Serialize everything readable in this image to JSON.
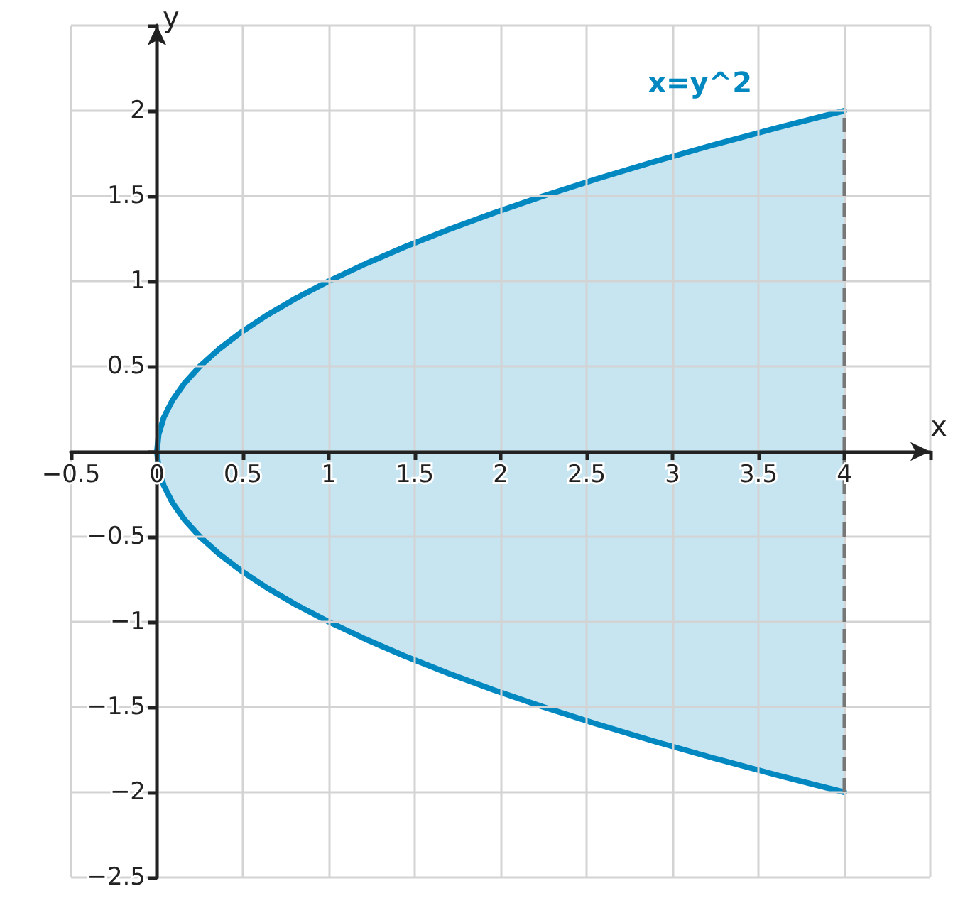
{
  "chart_data": {
    "type": "area",
    "xlabel": "x",
    "ylabel": "y",
    "series": [
      {
        "name": "x=y^2",
        "color": "#0288c0",
        "x": [
          0,
          0.01,
          0.04,
          0.09,
          0.16,
          0.25,
          0.36,
          0.49,
          0.64,
          0.81,
          1,
          1.21,
          1.44,
          1.69,
          1.96,
          2.25,
          2.56,
          2.89,
          3.24,
          3.61,
          4
        ],
        "values": [
          0,
          0.1,
          0.2,
          0.3,
          0.4,
          0.5,
          0.6,
          0.7,
          0.8,
          0.9,
          1,
          1.1,
          1.2,
          1.3,
          1.4,
          1.5,
          1.6,
          1.7,
          1.8,
          1.9,
          2
        ]
      },
      {
        "color": "#0288c0",
        "x": [
          0,
          0.01,
          0.04,
          0.09,
          0.16,
          0.25,
          0.36,
          0.49,
          0.64,
          0.81,
          1,
          1.21,
          1.44,
          1.69,
          1.96,
          2.25,
          2.56,
          2.89,
          3.24,
          3.61,
          4
        ],
        "values": [
          0,
          -0.1,
          -0.2,
          -0.3,
          -0.4,
          -0.5,
          -0.6,
          -0.7,
          -0.8,
          -0.9,
          -1,
          -1.1,
          -1.2,
          -1.3,
          -1.4,
          -1.5,
          -1.6,
          -1.7,
          -1.8,
          -1.9,
          -2
        ]
      }
    ],
    "xlim": [
      -0.5,
      4.5
    ],
    "xticks": [
      {
        "value": -0.5,
        "label": "−0.5"
      },
      0,
      0.5,
      1,
      1.5,
      2,
      2.5,
      3,
      3.5,
      4,
      {
        "value": 4.5,
        "label": null
      }
    ],
    "ylim": [
      -2.5,
      2.5
    ],
    "yticks": [
      {
        "value": -2.5,
        "label": "−2.5"
      },
      {
        "value": -2,
        "label": "−2"
      },
      {
        "value": -1.5,
        "label": "−1.5"
      },
      {
        "value": -1,
        "label": "−1"
      },
      {
        "value": -0.5,
        "label": "−0.5"
      },
      {
        "value": 0,
        "label": null
      },
      0.5,
      1,
      1.5,
      2,
      {
        "value": 2.5,
        "label": null
      }
    ],
    "ref_lines": [
      {
        "axis": "x",
        "value": 4,
        "color": "#777777",
        "line_style": "dashed"
      }
    ],
    "grid": true,
    "marker": "none",
    "legend": false
  }
}
